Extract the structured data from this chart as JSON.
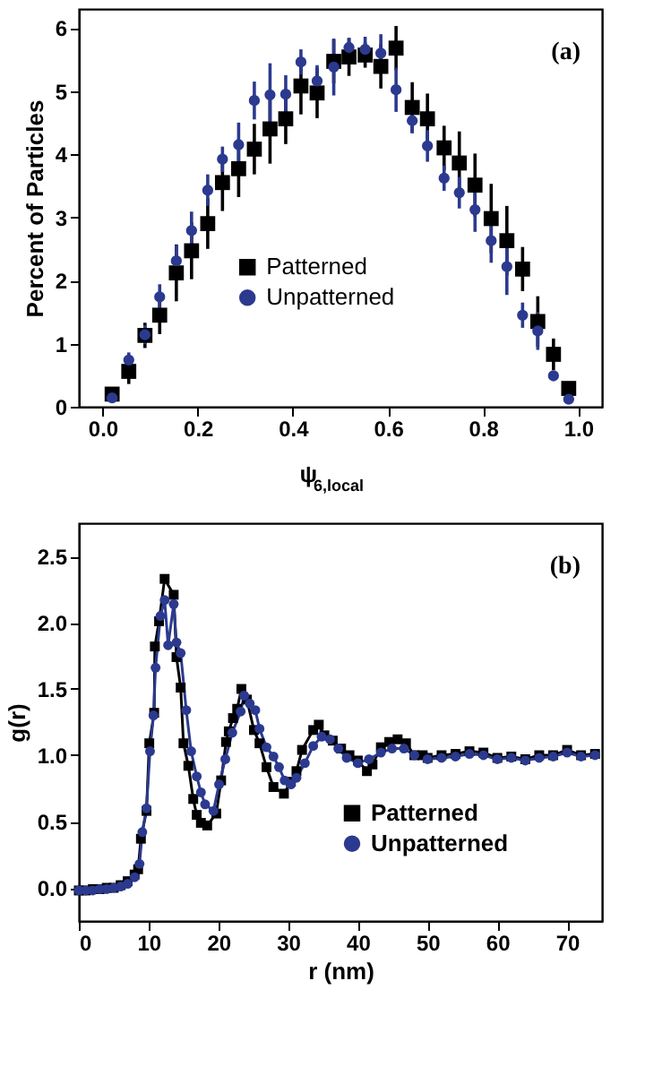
{
  "chart_data": [
    {
      "type": "scatter",
      "xlabel": "ψ$_{6,local}$",
      "ylabel": "Percent of Particles",
      "annotations": [
        "(a)"
      ],
      "xlim": [
        -0.05,
        1.05
      ],
      "ylim": [
        0,
        6.3
      ],
      "xticks": [
        {
          "value": 0,
          "label": "0.0"
        },
        0.2,
        0.4,
        0.6,
        0.8,
        {
          "value": 1,
          "label": "1.0"
        }
      ],
      "yticks": [
        0,
        1,
        2,
        3,
        4,
        5,
        6
      ],
      "grid": false,
      "legend": "bottom",
      "x": [
        0.02,
        0.055,
        0.089,
        0.12,
        0.155,
        0.187,
        0.221,
        0.252,
        0.286,
        0.319,
        0.352,
        0.385,
        0.417,
        0.451,
        0.486,
        0.518,
        0.552,
        0.585,
        0.617,
        0.651,
        0.683,
        0.718,
        0.75,
        0.783,
        0.817,
        0.85,
        0.883,
        0.915,
        0.948,
        0.98
      ],
      "series": [
        {
          "name": "Patterned",
          "color": "#000000",
          "marker": "square",
          "values": [
            0.2,
            0.56,
            1.13,
            1.45,
            2.12,
            2.47,
            2.9,
            3.55,
            3.77,
            4.08,
            4.4,
            4.56,
            5.08,
            4.97,
            5.47,
            5.54,
            5.57,
            5.39,
            5.68,
            4.74,
            4.56,
            4.1,
            3.86,
            3.51,
            2.98,
            2.63,
            2.18,
            1.35,
            0.83,
            0.29
          ],
          "errors": [
            0.08,
            0.2,
            0.2,
            0.3,
            0.45,
            0.45,
            0.4,
            0.45,
            0.45,
            0.4,
            0.55,
            0.4,
            0.45,
            0.4,
            0.35,
            0.3,
            0.2,
            0.35,
            0.35,
            0.4,
            0.4,
            0.35,
            0.5,
            0.5,
            0.55,
            0.55,
            0.35,
            0.4,
            0.25,
            0.1
          ]
        },
        {
          "name": "Unpatterned",
          "color": "#2b3a8f",
          "marker": "circle",
          "values": [
            0.14,
            0.74,
            1.14,
            1.74,
            2.31,
            2.79,
            3.43,
            3.92,
            4.15,
            4.85,
            4.94,
            4.95,
            5.46,
            5.16,
            5.38,
            5.69,
            5.66,
            5.6,
            5.02,
            4.53,
            4.13,
            3.62,
            3.39,
            3.12,
            2.63,
            2.22,
            1.45,
            1.2,
            0.49,
            0.12
          ],
          "errors": [
            0.05,
            0.12,
            0.15,
            0.2,
            0.25,
            0.3,
            0.25,
            0.2,
            0.35,
            0.3,
            0.5,
            0.3,
            0.2,
            0.25,
            0.45,
            0.15,
            0.2,
            0.3,
            0.35,
            0.2,
            0.25,
            0.2,
            0.25,
            0.35,
            0.35,
            0.45,
            0.2,
            0.3,
            0.08,
            0.05
          ]
        }
      ]
    },
    {
      "type": "line",
      "xlabel": "r (nm)",
      "ylabel": "g(r)",
      "annotations": [
        "(b)"
      ],
      "xlim": [
        0,
        75
      ],
      "ylim": [
        -0.25,
        2.75
      ],
      "xticks": [
        0,
        10,
        20,
        30,
        40,
        50,
        60,
        70
      ],
      "yticks": [
        {
          "value": 0,
          "label": "0.0"
        },
        0.5,
        {
          "value": 1,
          "label": "1.0"
        },
        1.5,
        {
          "value": 2,
          "label": "2.0"
        },
        2.5
      ],
      "grid": false,
      "legend": "bottom right",
      "line_style": "solid",
      "series": [
        {
          "name": "Patterned",
          "color": "#000000",
          "marker": "square",
          "x": [
            0,
            1,
            2,
            3,
            4,
            5,
            6,
            7,
            8,
            8.5,
            8.9,
            9.7,
            10.1,
            10.8,
            10.9,
            11.5,
            12.3,
            13.6,
            14.0,
            14.6,
            15.0,
            15.7,
            16.4,
            16.9,
            17.5,
            18.4,
            19.7,
            20.4,
            21.1,
            21.5,
            22.1,
            22.7,
            23.3,
            24.1,
            25.1,
            25.9,
            26.9,
            27.9,
            29.4,
            30.4,
            31.2,
            32.0,
            33.6,
            34.4,
            35.2,
            36.4,
            37.6,
            38.8,
            40.0,
            41.3,
            42.1,
            43.3,
            44.5,
            45.7,
            46.9,
            48.1,
            49.3,
            50,
            52,
            54,
            56,
            58,
            60,
            62,
            64,
            66,
            68,
            70,
            72,
            74
          ],
          "values": [
            -0.02,
            -0.02,
            -0.01,
            -0.01,
            0.0,
            0.0,
            0.02,
            0.05,
            0.1,
            0.14,
            0.37,
            0.58,
            1.09,
            1.32,
            1.82,
            2.01,
            2.33,
            2.21,
            1.74,
            1.51,
            1.09,
            0.92,
            0.67,
            0.55,
            0.49,
            0.47,
            0.56,
            0.81,
            1.1,
            1.18,
            1.28,
            1.35,
            1.5,
            1.42,
            1.19,
            1.09,
            0.91,
            0.76,
            0.71,
            0.8,
            0.88,
            1.04,
            1.19,
            1.23,
            1.15,
            1.11,
            1.05,
            1.0,
            0.96,
            0.88,
            0.93,
            1.06,
            1.1,
            1.12,
            1.09,
            1.0,
            1.0,
            0.98,
            1.0,
            1.01,
            1.03,
            1.02,
            0.98,
            0.99,
            0.97,
            1.0,
            1.0,
            1.04,
            1.0,
            1.01
          ]
        },
        {
          "name": "Unpatterned",
          "color": "#2b3a8f",
          "marker": "circle",
          "x": [
            0,
            1,
            2,
            3,
            4,
            5,
            6,
            7,
            8,
            8.7,
            9.1,
            9.7,
            10.2,
            10.7,
            11.0,
            11.7,
            12.3,
            12.8,
            13.6,
            14.0,
            14.6,
            15.4,
            16.1,
            16.9,
            17.5,
            18.1,
            19.3,
            20.1,
            21.0,
            22.0,
            23.2,
            23.7,
            24.5,
            25.3,
            25.9,
            26.9,
            27.9,
            28.7,
            29.5,
            30.4,
            31.2,
            32.4,
            33.6,
            34.8,
            36.0,
            37.2,
            38.4,
            40.0,
            41.6,
            43.3,
            44.9,
            46.6,
            48.1,
            50,
            52,
            54,
            56,
            58,
            60,
            62,
            64,
            66,
            68,
            70,
            72,
            74
          ],
          "values": [
            -0.02,
            -0.02,
            -0.02,
            -0.01,
            -0.01,
            0.0,
            0.01,
            0.03,
            0.08,
            0.18,
            0.42,
            0.6,
            1.03,
            1.3,
            1.66,
            2.05,
            2.17,
            1.83,
            2.14,
            1.85,
            1.77,
            1.34,
            1.03,
            0.84,
            0.72,
            0.63,
            0.58,
            0.78,
            0.97,
            1.17,
            1.33,
            1.45,
            1.39,
            1.34,
            1.2,
            1.06,
            0.99,
            0.91,
            0.81,
            0.78,
            0.83,
            0.94,
            1.07,
            1.14,
            1.12,
            1.05,
            0.98,
            0.94,
            0.97,
            1.02,
            1.05,
            1.05,
            1.0,
            0.97,
            0.98,
            0.99,
            1.01,
            1.0,
            0.97,
            0.98,
            0.96,
            0.98,
            0.99,
            1.02,
            0.99,
            1.0
          ]
        }
      ]
    }
  ]
}
